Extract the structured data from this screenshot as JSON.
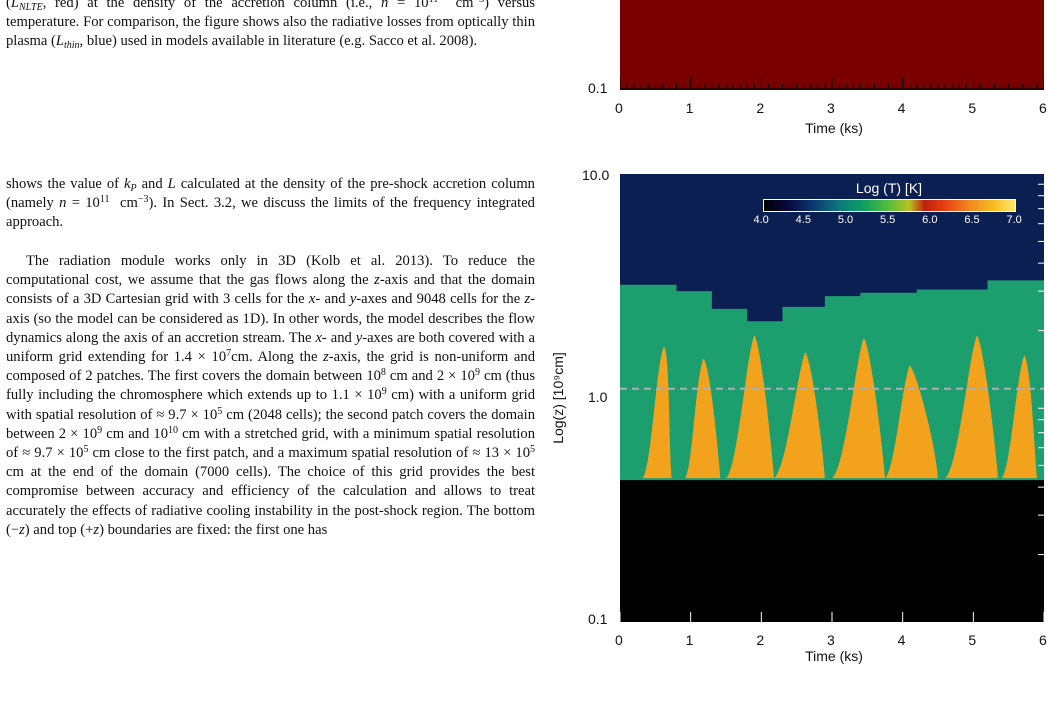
{
  "paper": {
    "caption_html": "(<i>L<sub>NLTE</sub></i>, red) at the density of the accretion column (i.e., <i>n</i> = 10<sup>11</sup> &nbsp;cm<sup>−3</sup>) versus temperature. For comparison, the figure shows also the radiative losses from optically thin plasma (<i>L<sub>thin</sub></i>, blue) used in models available in literature (e.g. Sacco et al. 2008).",
    "para1_html": "shows the value of <i>k<sub>P</sub></i> and <i>L</i> calculated at the density of the pre-shock accretion column (namely <i>n</i> = 10<sup>11</sup> &nbsp;cm<sup>−3</sup>). In Sect. 3.2, we discuss the limits of the frequency integrated approach.",
    "para2_html": "The radiation module works only in 3D (Kolb et al. 2013). To reduce the computational cost, we assume that the gas flows along the <i>z</i>-axis and that the domain consists of a 3D Cartesian grid with 3 cells for the <i>x</i>- and <i>y</i>-axes and 9048 cells for the <i>z</i>-axis (so the model can be considered as 1D). In other words, the model describes the flow dynamics along the axis of an accretion stream. The <i>x</i>- and <i>y</i>-axes are both covered with a uniform grid extending for 1.4 × 10<sup>7</sup>cm. Along the <i>z</i>-axis, the grid is non-uniform and composed of 2 patches. The first covers the domain between 10<sup>8</sup> cm and 2 × 10<sup>9</sup> cm (thus fully including the chromosphere which extends up to 1.1 × 10<sup>9</sup> cm) with a uniform grid with spatial resolution of ≈ 9.7 × 10<sup>5</sup> cm (2048 cells); the second patch covers the domain between 2 × 10<sup>9</sup> cm and 10<sup>10</sup> cm with a stretched grid, with a minimum spatial resolution of ≈ 9.7 × 10<sup>5</sup> cm close to the first patch, and a maximum spatial resolution of ≈ 13 × 10<sup>5</sup> cm at the end of the domain (7000 cells). The choice of this grid provides the best compromise between accuracy and efficiency of the calculation and allows to treat accurately the effects of radiative cooling instability in the post-shock region. The bottom (−<i>z</i>) and top (+<i>z</i>) boundaries are fixed: the first one has"
  },
  "chart_data": [
    {
      "type": "heatmap",
      "panel": "top",
      "xlabel": "Time (ks)",
      "xlim": [
        0,
        6
      ],
      "xticks": [
        "0",
        "1",
        "2",
        "3",
        "4",
        "5",
        "6"
      ],
      "yticks": [
        "0.1"
      ],
      "fill_color": "#7a0000",
      "note": "cropped panel; only lower region visible, uniform dark red"
    },
    {
      "type": "heatmap",
      "panel": "bottom",
      "xlabel": "Time (ks)",
      "ylabel": "Log(z) [10⁹cm]",
      "xlim": [
        0,
        6
      ],
      "ylim": [
        0.1,
        10.0
      ],
      "yscale": "log",
      "xticks": [
        "0",
        "1",
        "2",
        "3",
        "4",
        "5",
        "6"
      ],
      "yticks": [
        "10.0",
        "1.0",
        "0.1"
      ],
      "colorbar": {
        "title": "Log (T) [K]",
        "range": [
          4.0,
          7.0
        ],
        "ticks": [
          "4.0",
          "4.5",
          "5.0",
          "5.5",
          "6.0",
          "6.5",
          "7.0"
        ],
        "placement": "top-right"
      },
      "reference_line_y": 1.1,
      "regions": {
        "chromosphere_color": "#000000",
        "corona_color": "#0c1f52",
        "stream_color": "#1c9e6e",
        "hot_plug_color": "#f2a21c"
      },
      "stream_front_z": [
        [
          0.0,
          3.2
        ],
        [
          0.8,
          3.0
        ],
        [
          1.3,
          2.5
        ],
        [
          1.8,
          2.2
        ],
        [
          2.3,
          2.55
        ],
        [
          2.9,
          2.85
        ],
        [
          3.4,
          2.95
        ],
        [
          4.2,
          3.05
        ],
        [
          5.2,
          3.35
        ],
        [
          6.0,
          3.65
        ]
      ],
      "hot_plasma_peaks": [
        {
          "t_start": 0.32,
          "t_peak": 0.62,
          "t_end": 0.73,
          "z_peak": 1.7
        },
        {
          "t_start": 0.92,
          "t_peak": 1.18,
          "t_end": 1.42,
          "z_peak": 1.5
        },
        {
          "t_start": 1.5,
          "t_peak": 1.9,
          "t_end": 2.18,
          "z_peak": 1.9
        },
        {
          "t_start": 2.18,
          "t_peak": 2.62,
          "t_end": 2.9,
          "z_peak": 1.6
        },
        {
          "t_start": 3.0,
          "t_peak": 3.45,
          "t_end": 3.75,
          "z_peak": 1.85
        },
        {
          "t_start": 3.75,
          "t_peak": 4.1,
          "t_end": 4.5,
          "z_peak": 1.4
        },
        {
          "t_start": 4.6,
          "t_peak": 5.05,
          "t_end": 5.35,
          "z_peak": 1.9
        },
        {
          "t_start": 5.4,
          "t_peak": 5.72,
          "t_end": 5.9,
          "z_peak": 1.55
        }
      ]
    }
  ]
}
